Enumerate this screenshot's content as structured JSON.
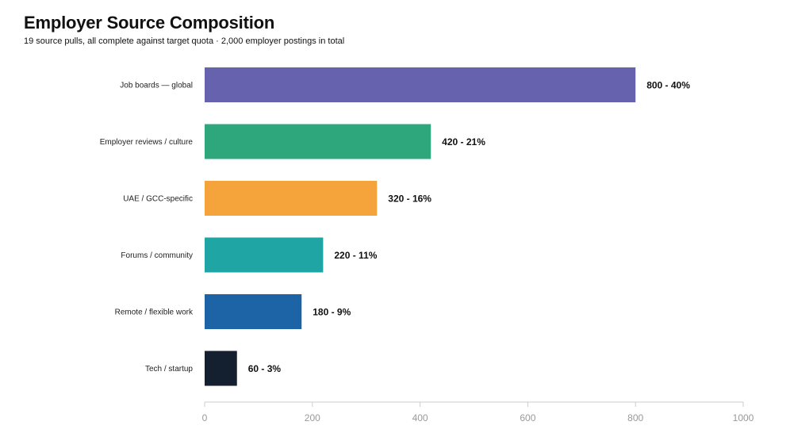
{
  "header": {
    "title": "Employer Source Composition",
    "subtitle": "19 source pulls, all complete against target quota · 2,000 employer postings in total"
  },
  "chart_data": {
    "type": "bar",
    "orientation": "horizontal",
    "title": "Employer Source Composition",
    "subtitle": "19 source pulls, all complete against target quota · 2,000 employer postings in total",
    "xlabel": "",
    "ylabel": "",
    "categories": [
      "Job boards — global",
      "Employer reviews / culture",
      "UAE / GCC-specific",
      "Forums / community",
      "Remote / flexible work",
      "Tech / startup"
    ],
    "values": [
      800,
      420,
      320,
      220,
      180,
      60
    ],
    "data_labels": [
      "800 - 40%",
      "420 - 21%",
      "320 - 16%",
      "220 - 11%",
      "180 - 9%",
      "60 - 3%"
    ],
    "colors": [
      "#6762ad",
      "#2fa77c",
      "#f5a43c",
      "#1fa5a3",
      "#1d64a6",
      "#141f2f"
    ],
    "xlim": [
      0,
      1000
    ],
    "xticks": [
      0,
      200,
      400,
      600,
      800,
      1000
    ],
    "grid": false
  }
}
